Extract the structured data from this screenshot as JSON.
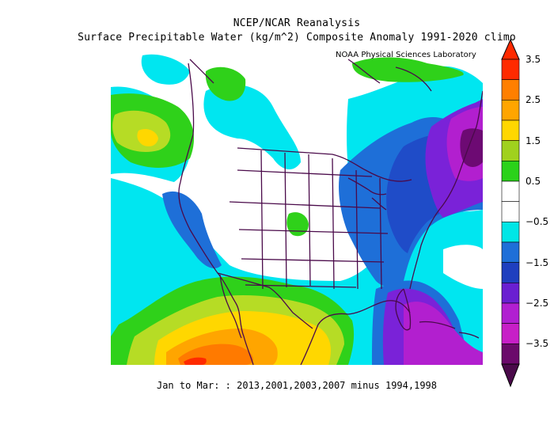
{
  "title_line1": "NCEP/NCAR Reanalysis",
  "title_line2": "Surface Precipitable Water (kg/m^2) Composite Anomaly 1991-2020 climo",
  "credit": "NOAA Physical Sciences Laboratory",
  "footer": "Jan to Mar: : 2013,2001,2003,2007 minus 1994,1998",
  "colorbar": {
    "labels": [
      "3.5",
      "2.5",
      "1.5",
      "0.5",
      "−0.5",
      "−1.5",
      "−2.5",
      "−3.5"
    ],
    "colors": [
      "#ff2a00",
      "#ff7f00",
      "#ffa500",
      "#ffd700",
      "#a0d11e",
      "#2bd21a",
      "#ffffff",
      "#ffffff",
      "#00e6e6",
      "#1e6fd8",
      "#1f3fbf",
      "#6a1fd1",
      "#b11fd1",
      "#c71fc7",
      "#6b0a6b"
    ]
  },
  "map_colors": {
    "cyan": "#00e6f0",
    "blue": "#1e6fd8",
    "darkblue": "#1f4cc8",
    "purple": "#7a22d8",
    "magenta": "#b21fcf",
    "darkpurple": "#6d0a73",
    "green": "#2fd11a",
    "yellowgreen": "#b6dc25",
    "yellow": "#ffd700",
    "orange": "#ffa500",
    "darkorange": "#ff7a00",
    "red": "#ff2a00",
    "border": "#4a0a4a"
  }
}
